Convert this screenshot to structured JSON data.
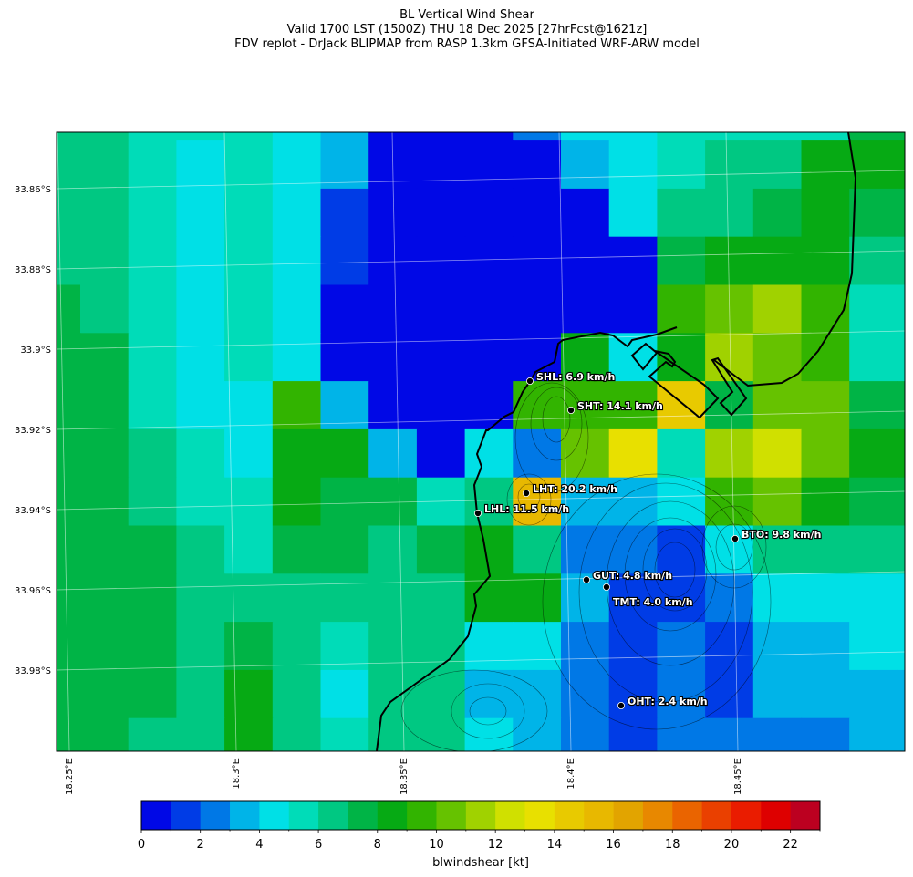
{
  "title": {
    "line1": "BL Vertical Wind Shear",
    "line2": "Valid 1700 LST (1500Z) THU 18 Dec 2025 [27hrFcst@1621z]",
    "line3": "FDV replot - DrJack BLIPMAP from RASP 1.3km GFSA-Initiated WRF-ARW model"
  },
  "lat_ticks": [
    "33.86°S",
    "33.88°S",
    "33.9°S",
    "33.92°S",
    "33.94°S",
    "33.96°S",
    "33.98°S"
  ],
  "lon_ticks": [
    "18.25°E",
    "18.3°E",
    "18.35°E",
    "18.4°E",
    "18.45°E"
  ],
  "colorbar": {
    "label": "blwindshear [kt]",
    "range": [
      0,
      23
    ],
    "tick_labels": [
      "0",
      "2",
      "4",
      "6",
      "8",
      "10",
      "12",
      "14",
      "16",
      "18",
      "20",
      "22"
    ],
    "colors": [
      "#0008e6",
      "#003ce6",
      "#0078e6",
      "#00b4e8",
      "#00e0e6",
      "#00dcb8",
      "#00c882",
      "#00b446",
      "#06aa14",
      "#32b400",
      "#66c200",
      "#a0d200",
      "#d0e000",
      "#e8e000",
      "#e8ca00",
      "#e8b800",
      "#e2a400",
      "#e88800",
      "#ea6400",
      "#ea4000",
      "#ea1c00",
      "#de0000",
      "#bc0020"
    ]
  },
  "field_kt": [
    [
      6,
      6,
      5,
      5,
      5,
      4,
      3,
      0,
      0,
      0,
      2,
      4,
      4,
      5,
      5,
      5,
      5,
      7,
      7
    ],
    [
      6,
      6,
      5,
      4,
      5,
      4,
      3,
      0,
      0,
      0,
      0,
      3,
      4,
      5,
      6,
      6,
      8,
      8,
      8
    ],
    [
      6,
      6,
      5,
      4,
      5,
      4,
      1,
      0,
      0,
      0,
      0,
      0,
      4,
      6,
      6,
      7,
      8,
      7,
      7
    ],
    [
      6,
      6,
      5,
      4,
      5,
      4,
      1,
      0,
      0,
      0,
      0,
      0,
      0,
      7,
      8,
      8,
      8,
      6,
      6
    ],
    [
      7,
      6,
      5,
      4,
      5,
      4,
      0,
      0,
      0,
      0,
      0,
      0,
      0,
      9,
      10,
      11,
      9,
      5,
      5
    ],
    [
      7,
      7,
      5,
      4,
      5,
      4,
      0,
      0,
      0,
      0,
      0,
      8,
      4,
      8,
      11,
      10,
      9,
      5,
      5
    ],
    [
      7,
      7,
      5,
      4,
      4,
      9,
      3,
      0,
      0,
      0,
      9,
      9,
      9,
      14,
      7,
      10,
      10,
      7,
      7
    ],
    [
      7,
      7,
      6,
      5,
      4,
      8,
      8,
      3,
      0,
      4,
      2,
      10,
      13,
      5,
      11,
      12,
      10,
      8,
      8
    ],
    [
      7,
      7,
      6,
      5,
      5,
      8,
      7,
      7,
      5,
      6,
      15,
      3,
      3,
      4,
      9,
      10,
      8,
      7,
      7
    ],
    [
      7,
      7,
      7,
      6,
      5,
      7,
      7,
      6,
      7,
      8,
      6,
      2,
      2,
      1,
      4,
      6,
      6,
      6,
      6
    ],
    [
      7,
      7,
      7,
      6,
      6,
      6,
      6,
      6,
      6,
      8,
      8,
      3,
      1,
      1,
      2,
      4,
      4,
      4,
      4
    ],
    [
      7,
      7,
      7,
      6,
      7,
      6,
      5,
      6,
      6,
      4,
      4,
      2,
      1,
      2,
      1,
      3,
      3,
      4,
      4
    ],
    [
      7,
      7,
      7,
      6,
      8,
      6,
      4,
      6,
      6,
      3,
      3,
      2,
      1,
      2,
      1,
      3,
      3,
      3,
      3
    ],
    [
      7,
      7,
      6,
      6,
      8,
      6,
      5,
      6,
      6,
      4,
      3,
      2,
      1,
      2,
      2,
      2,
      2,
      3,
      3
    ]
  ],
  "stations": [
    {
      "label": "SHL: 6.9 km/h"
    },
    {
      "label": "SHT: 14.1 km/h"
    },
    {
      "label": "LHT: 20.2 km/h"
    },
    {
      "label": "LHL: 11.5 km/h"
    },
    {
      "label": "BTO: 9.8 km/h"
    },
    {
      "label": "GUT: 4.8 km/h"
    },
    {
      "label": "TMT: 4.0 km/h"
    },
    {
      "label": "OHT: 2.4 km/h"
    }
  ]
}
